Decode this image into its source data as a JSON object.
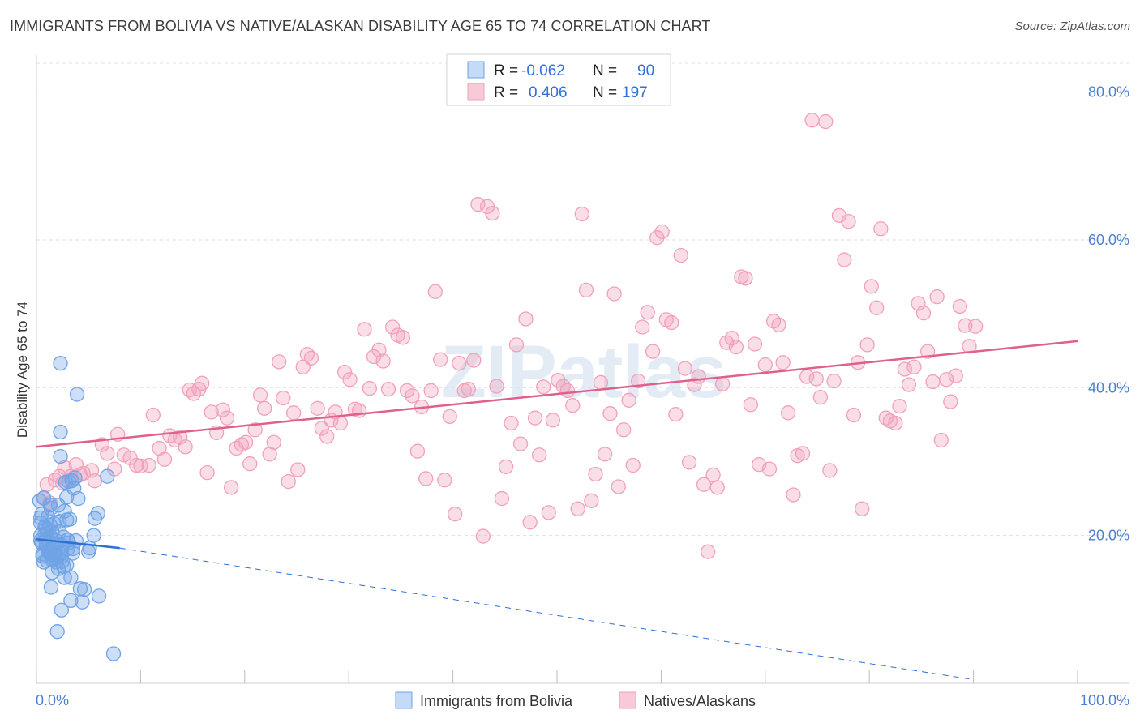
{
  "title": "IMMIGRANTS FROM BOLIVIA VS NATIVE/ALASKAN DISABILITY AGE 65 TO 74 CORRELATION CHART",
  "source": "Source: ZipAtlas.com",
  "watermark": "ZIPatlas",
  "chart_data": {
    "type": "scatter",
    "title": "IMMIGRANTS FROM BOLIVIA VS NATIVE/ALASKAN DISABILITY AGE 65 TO 74 CORRELATION CHART",
    "xlabel": "",
    "ylabel": "Disability Age 65 to 74",
    "xlim": [
      0,
      100
    ],
    "ylim": [
      0,
      85
    ],
    "x_tick_labels": [
      "0.0%",
      "100.0%"
    ],
    "y_ticks": [
      20,
      40,
      60,
      80
    ],
    "y_tick_labels": [
      "20.0%",
      "40.0%",
      "60.0%",
      "80.0%"
    ],
    "grid": true,
    "legend_position": "top-center",
    "stats": [
      {
        "series": "Immigrants from Bolivia",
        "r_label": "R =",
        "r": "-0.062",
        "n_label": "N =",
        "n": "90"
      },
      {
        "series": "Natives/Alaskans",
        "r_label": "R =",
        "r": "0.406",
        "n_label": "N =",
        "n": "197"
      }
    ],
    "series": [
      {
        "name": "Immigrants from Bolivia",
        "color": "#6fa3e6",
        "line_color": "#2f6fd6",
        "trend_solid": [
          [
            0,
            19.5
          ],
          [
            8,
            18.3
          ]
        ],
        "trend_dashed": [
          [
            8,
            18.3
          ],
          [
            90,
            0.5
          ]
        ],
        "points": [
          [
            0.3,
            24.7
          ],
          [
            0.4,
            22.4
          ],
          [
            0.4,
            21.7
          ],
          [
            0.4,
            20.0
          ],
          [
            0.5,
            19.0
          ],
          [
            0.6,
            17.2
          ],
          [
            0.7,
            25.1
          ],
          [
            0.8,
            21.2
          ],
          [
            0.8,
            20.2
          ],
          [
            0.9,
            19.5
          ],
          [
            0.9,
            18.6
          ],
          [
            1.0,
            16.6
          ],
          [
            1.0,
            20.7
          ],
          [
            1.1,
            22.5
          ],
          [
            1.2,
            19.1
          ],
          [
            1.2,
            18.0
          ],
          [
            1.3,
            21.4
          ],
          [
            1.3,
            24.1
          ],
          [
            1.4,
            19.8
          ],
          [
            1.4,
            13.0
          ],
          [
            1.5,
            15.0
          ],
          [
            1.5,
            16.7
          ],
          [
            1.6,
            18.4
          ],
          [
            1.7,
            17.2
          ],
          [
            1.7,
            21.6
          ],
          [
            1.8,
            18.7
          ],
          [
            1.9,
            16.4
          ],
          [
            1.9,
            19.3
          ],
          [
            2.0,
            17.0
          ],
          [
            2.0,
            7.0
          ],
          [
            2.1,
            24.1
          ],
          [
            2.1,
            15.5
          ],
          [
            2.2,
            17.6
          ],
          [
            2.2,
            21.9
          ],
          [
            2.3,
            34.0
          ],
          [
            2.3,
            30.7
          ],
          [
            2.4,
            17.8
          ],
          [
            2.4,
            9.9
          ],
          [
            2.5,
            16.5
          ],
          [
            2.5,
            18.6
          ],
          [
            2.6,
            15.8
          ],
          [
            2.7,
            14.3
          ],
          [
            2.7,
            23.3
          ],
          [
            2.8,
            27.2
          ],
          [
            2.9,
            25.2
          ],
          [
            2.9,
            22.1
          ],
          [
            3.0,
            19.4
          ],
          [
            3.0,
            18.2
          ],
          [
            3.1,
            27.3
          ],
          [
            3.2,
            22.2
          ],
          [
            3.3,
            11.2
          ],
          [
            3.3,
            14.3
          ],
          [
            3.4,
            27.4
          ],
          [
            3.5,
            18.2
          ],
          [
            3.5,
            17.6
          ],
          [
            3.6,
            26.4
          ],
          [
            3.7,
            27.8
          ],
          [
            3.8,
            19.3
          ],
          [
            3.9,
            39.1
          ],
          [
            4.0,
            25.0
          ],
          [
            4.2,
            12.8
          ],
          [
            4.4,
            11.0
          ],
          [
            4.6,
            12.7
          ],
          [
            5.0,
            17.8
          ],
          [
            5.1,
            18.3
          ],
          [
            5.5,
            20.0
          ],
          [
            5.6,
            22.3
          ],
          [
            5.9,
            23.0
          ],
          [
            6.0,
            11.8
          ],
          [
            6.8,
            28.0
          ],
          [
            7.4,
            4.0
          ],
          [
            2.3,
            43.3
          ],
          [
            0.6,
            17.5
          ],
          [
            1.1,
            17.9
          ],
          [
            1.6,
            16.9
          ],
          [
            0.9,
            21.0
          ],
          [
            1.4,
            23.7
          ],
          [
            2.6,
            19.8
          ],
          [
            3.1,
            19.0
          ],
          [
            0.5,
            22.9
          ],
          [
            1.8,
            17.4
          ],
          [
            2.2,
            20.5
          ],
          [
            0.7,
            16.4
          ],
          [
            1.3,
            17.5
          ],
          [
            1.9,
            18.9
          ],
          [
            2.4,
            17.1
          ],
          [
            2.9,
            16.0
          ],
          [
            0.4,
            19.3
          ],
          [
            1.0,
            18.4
          ],
          [
            1.5,
            20.5
          ]
        ]
      },
      {
        "name": "Natives/Alaskans",
        "color": "#f2a0ba",
        "line_color": "#e0608c",
        "trend_solid": [
          [
            0,
            32.0
          ],
          [
            100,
            46.3
          ]
        ],
        "points": [
          [
            0.7,
            25.0
          ],
          [
            1.0,
            26.9
          ],
          [
            1.3,
            24.4
          ],
          [
            1.8,
            27.5
          ],
          [
            2.2,
            28.0
          ],
          [
            2.5,
            27.1
          ],
          [
            2.7,
            29.2
          ],
          [
            3.3,
            28.0
          ],
          [
            3.8,
            29.6
          ],
          [
            4.2,
            28.2
          ],
          [
            4.5,
            28.4
          ],
          [
            5.3,
            28.8
          ],
          [
            5.6,
            27.4
          ],
          [
            6.3,
            32.3
          ],
          [
            6.8,
            31.1
          ],
          [
            7.5,
            29.0
          ],
          [
            7.8,
            33.7
          ],
          [
            8.4,
            30.9
          ],
          [
            9.0,
            30.5
          ],
          [
            9.6,
            29.5
          ],
          [
            10.0,
            29.4
          ],
          [
            10.8,
            29.5
          ],
          [
            11.2,
            36.3
          ],
          [
            11.8,
            31.8
          ],
          [
            12.3,
            30.3
          ],
          [
            12.8,
            33.5
          ],
          [
            13.3,
            32.9
          ],
          [
            13.8,
            33.3
          ],
          [
            14.3,
            32.0
          ],
          [
            14.7,
            39.7
          ],
          [
            15.1,
            39.2
          ],
          [
            15.6,
            39.8
          ],
          [
            15.9,
            40.6
          ],
          [
            16.4,
            28.5
          ],
          [
            16.8,
            36.7
          ],
          [
            17.3,
            33.9
          ],
          [
            17.9,
            37.0
          ],
          [
            18.3,
            35.9
          ],
          [
            18.7,
            26.5
          ],
          [
            19.2,
            31.8
          ],
          [
            19.7,
            32.3
          ],
          [
            20.1,
            32.6
          ],
          [
            20.5,
            29.7
          ],
          [
            21.0,
            34.3
          ],
          [
            21.5,
            39.0
          ],
          [
            21.9,
            37.2
          ],
          [
            22.4,
            31.0
          ],
          [
            22.8,
            32.6
          ],
          [
            23.3,
            43.5
          ],
          [
            23.7,
            38.6
          ],
          [
            24.2,
            27.3
          ],
          [
            24.7,
            36.6
          ],
          [
            25.1,
            28.9
          ],
          [
            25.6,
            42.8
          ],
          [
            26.0,
            44.5
          ],
          [
            26.4,
            44.0
          ],
          [
            27.0,
            37.2
          ],
          [
            27.4,
            34.5
          ],
          [
            27.9,
            33.4
          ],
          [
            28.3,
            35.6
          ],
          [
            28.7,
            36.7
          ],
          [
            29.2,
            35.2
          ],
          [
            29.6,
            42.1
          ],
          [
            30.1,
            41.1
          ],
          [
            30.6,
            37.1
          ],
          [
            31.0,
            36.9
          ],
          [
            31.5,
            47.9
          ],
          [
            32.0,
            39.9
          ],
          [
            32.4,
            44.2
          ],
          [
            32.9,
            45.1
          ],
          [
            33.3,
            43.6
          ],
          [
            33.8,
            39.8
          ],
          [
            34.2,
            48.2
          ],
          [
            34.7,
            47.1
          ],
          [
            35.2,
            46.8
          ],
          [
            35.6,
            39.6
          ],
          [
            36.1,
            38.9
          ],
          [
            36.6,
            31.4
          ],
          [
            37.0,
            37.4
          ],
          [
            37.4,
            27.7
          ],
          [
            37.9,
            39.6
          ],
          [
            38.3,
            53.0
          ],
          [
            38.8,
            43.8
          ],
          [
            39.2,
            27.5
          ],
          [
            39.7,
            36.1
          ],
          [
            40.2,
            22.9
          ],
          [
            40.6,
            43.3
          ],
          [
            41.1,
            39.6
          ],
          [
            41.5,
            39.8
          ],
          [
            42.0,
            43.7
          ],
          [
            42.4,
            64.8
          ],
          [
            42.9,
            19.9
          ],
          [
            43.3,
            64.5
          ],
          [
            43.8,
            63.6
          ],
          [
            44.2,
            40.2
          ],
          [
            44.7,
            25.0
          ],
          [
            45.1,
            29.3
          ],
          [
            45.6,
            35.2
          ],
          [
            46.1,
            45.8
          ],
          [
            46.5,
            32.4
          ],
          [
            47.0,
            49.3
          ],
          [
            47.4,
            21.8
          ],
          [
            47.9,
            35.9
          ],
          [
            48.3,
            30.9
          ],
          [
            48.7,
            40.1
          ],
          [
            49.2,
            23.1
          ],
          [
            49.6,
            35.6
          ],
          [
            50.1,
            41.0
          ],
          [
            50.6,
            40.2
          ],
          [
            51.0,
            39.6
          ],
          [
            51.5,
            37.6
          ],
          [
            52.0,
            23.6
          ],
          [
            52.4,
            63.5
          ],
          [
            52.8,
            53.2
          ],
          [
            53.3,
            24.7
          ],
          [
            53.7,
            28.3
          ],
          [
            54.2,
            40.7
          ],
          [
            54.6,
            31.0
          ],
          [
            55.1,
            36.5
          ],
          [
            55.5,
            52.7
          ],
          [
            55.9,
            26.6
          ],
          [
            56.4,
            34.3
          ],
          [
            56.9,
            38.3
          ],
          [
            57.3,
            29.5
          ],
          [
            57.8,
            40.9
          ],
          [
            58.2,
            48.2
          ],
          [
            58.7,
            50.2
          ],
          [
            59.2,
            44.9
          ],
          [
            59.6,
            60.3
          ],
          [
            60.1,
            61.1
          ],
          [
            60.5,
            49.2
          ],
          [
            61.0,
            48.8
          ],
          [
            61.4,
            36.4
          ],
          [
            61.9,
            57.9
          ],
          [
            62.3,
            42.6
          ],
          [
            62.7,
            29.9
          ],
          [
            63.2,
            40.4
          ],
          [
            63.6,
            41.5
          ],
          [
            64.1,
            26.9
          ],
          [
            64.5,
            17.8
          ],
          [
            65.0,
            28.2
          ],
          [
            65.4,
            26.5
          ],
          [
            65.9,
            40.5
          ],
          [
            66.3,
            46.1
          ],
          [
            66.8,
            46.7
          ],
          [
            67.2,
            45.5
          ],
          [
            67.7,
            55.0
          ],
          [
            68.1,
            54.8
          ],
          [
            68.6,
            37.7
          ],
          [
            69.0,
            45.9
          ],
          [
            69.4,
            29.6
          ],
          [
            70.0,
            43.1
          ],
          [
            70.4,
            29.0
          ],
          [
            70.8,
            49.0
          ],
          [
            71.3,
            48.5
          ],
          [
            71.7,
            43.4
          ],
          [
            72.2,
            36.6
          ],
          [
            72.7,
            25.5
          ],
          [
            73.1,
            30.8
          ],
          [
            73.6,
            31.1
          ],
          [
            74.0,
            41.5
          ],
          [
            74.5,
            76.2
          ],
          [
            74.9,
            41.2
          ],
          [
            75.3,
            38.7
          ],
          [
            75.8,
            76.0
          ],
          [
            76.2,
            28.8
          ],
          [
            76.6,
            40.9
          ],
          [
            77.1,
            63.3
          ],
          [
            77.6,
            57.3
          ],
          [
            78.0,
            62.5
          ],
          [
            78.5,
            36.3
          ],
          [
            78.9,
            43.4
          ],
          [
            79.3,
            23.6
          ],
          [
            79.8,
            45.8
          ],
          [
            80.2,
            53.7
          ],
          [
            80.7,
            50.8
          ],
          [
            81.1,
            61.5
          ],
          [
            81.6,
            35.9
          ],
          [
            82.0,
            35.5
          ],
          [
            82.5,
            35.2
          ],
          [
            82.9,
            37.5
          ],
          [
            83.4,
            42.5
          ],
          [
            83.8,
            40.4
          ],
          [
            84.3,
            42.8
          ],
          [
            84.7,
            51.4
          ],
          [
            85.2,
            50.1
          ],
          [
            85.6,
            44.9
          ],
          [
            86.1,
            40.8
          ],
          [
            86.5,
            52.3
          ],
          [
            86.9,
            32.9
          ],
          [
            87.4,
            41.1
          ],
          [
            87.8,
            38.1
          ],
          [
            88.3,
            41.6
          ],
          [
            88.7,
            51.0
          ],
          [
            89.2,
            48.4
          ],
          [
            89.6,
            45.6
          ],
          [
            90.2,
            48.3
          ]
        ]
      }
    ]
  }
}
